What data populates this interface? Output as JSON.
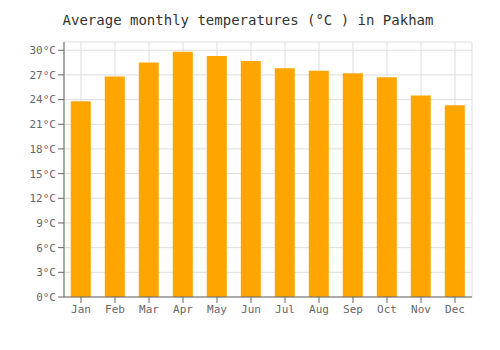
{
  "chart_data": {
    "type": "bar",
    "title": "Average monthly temperatures (°C ) in Pakham",
    "categories": [
      "Jan",
      "Feb",
      "Mar",
      "Apr",
      "May",
      "Jun",
      "Jul",
      "Aug",
      "Sep",
      "Oct",
      "Nov",
      "Dec"
    ],
    "values": [
      23.8,
      26.8,
      28.5,
      29.8,
      29.3,
      28.7,
      27.8,
      27.5,
      27.2,
      26.7,
      24.5,
      23.3
    ],
    "color": "#FFA500",
    "ylim": [
      0,
      31
    ],
    "yticks": [
      {
        "value": 0,
        "label": "0°C"
      },
      {
        "value": 3,
        "label": "3°C"
      },
      {
        "value": 6,
        "label": "6°C"
      },
      {
        "value": 9,
        "label": "9°C"
      },
      {
        "value": 12,
        "label": "12°C"
      },
      {
        "value": 15,
        "label": "15°C"
      },
      {
        "value": 18,
        "label": "18°C"
      },
      {
        "value": 21,
        "label": "21°C"
      },
      {
        "value": 24,
        "label": "24°C"
      },
      {
        "value": 27,
        "label": "27°C"
      },
      {
        "value": 30,
        "label": "30°C"
      }
    ],
    "grid": true
  }
}
